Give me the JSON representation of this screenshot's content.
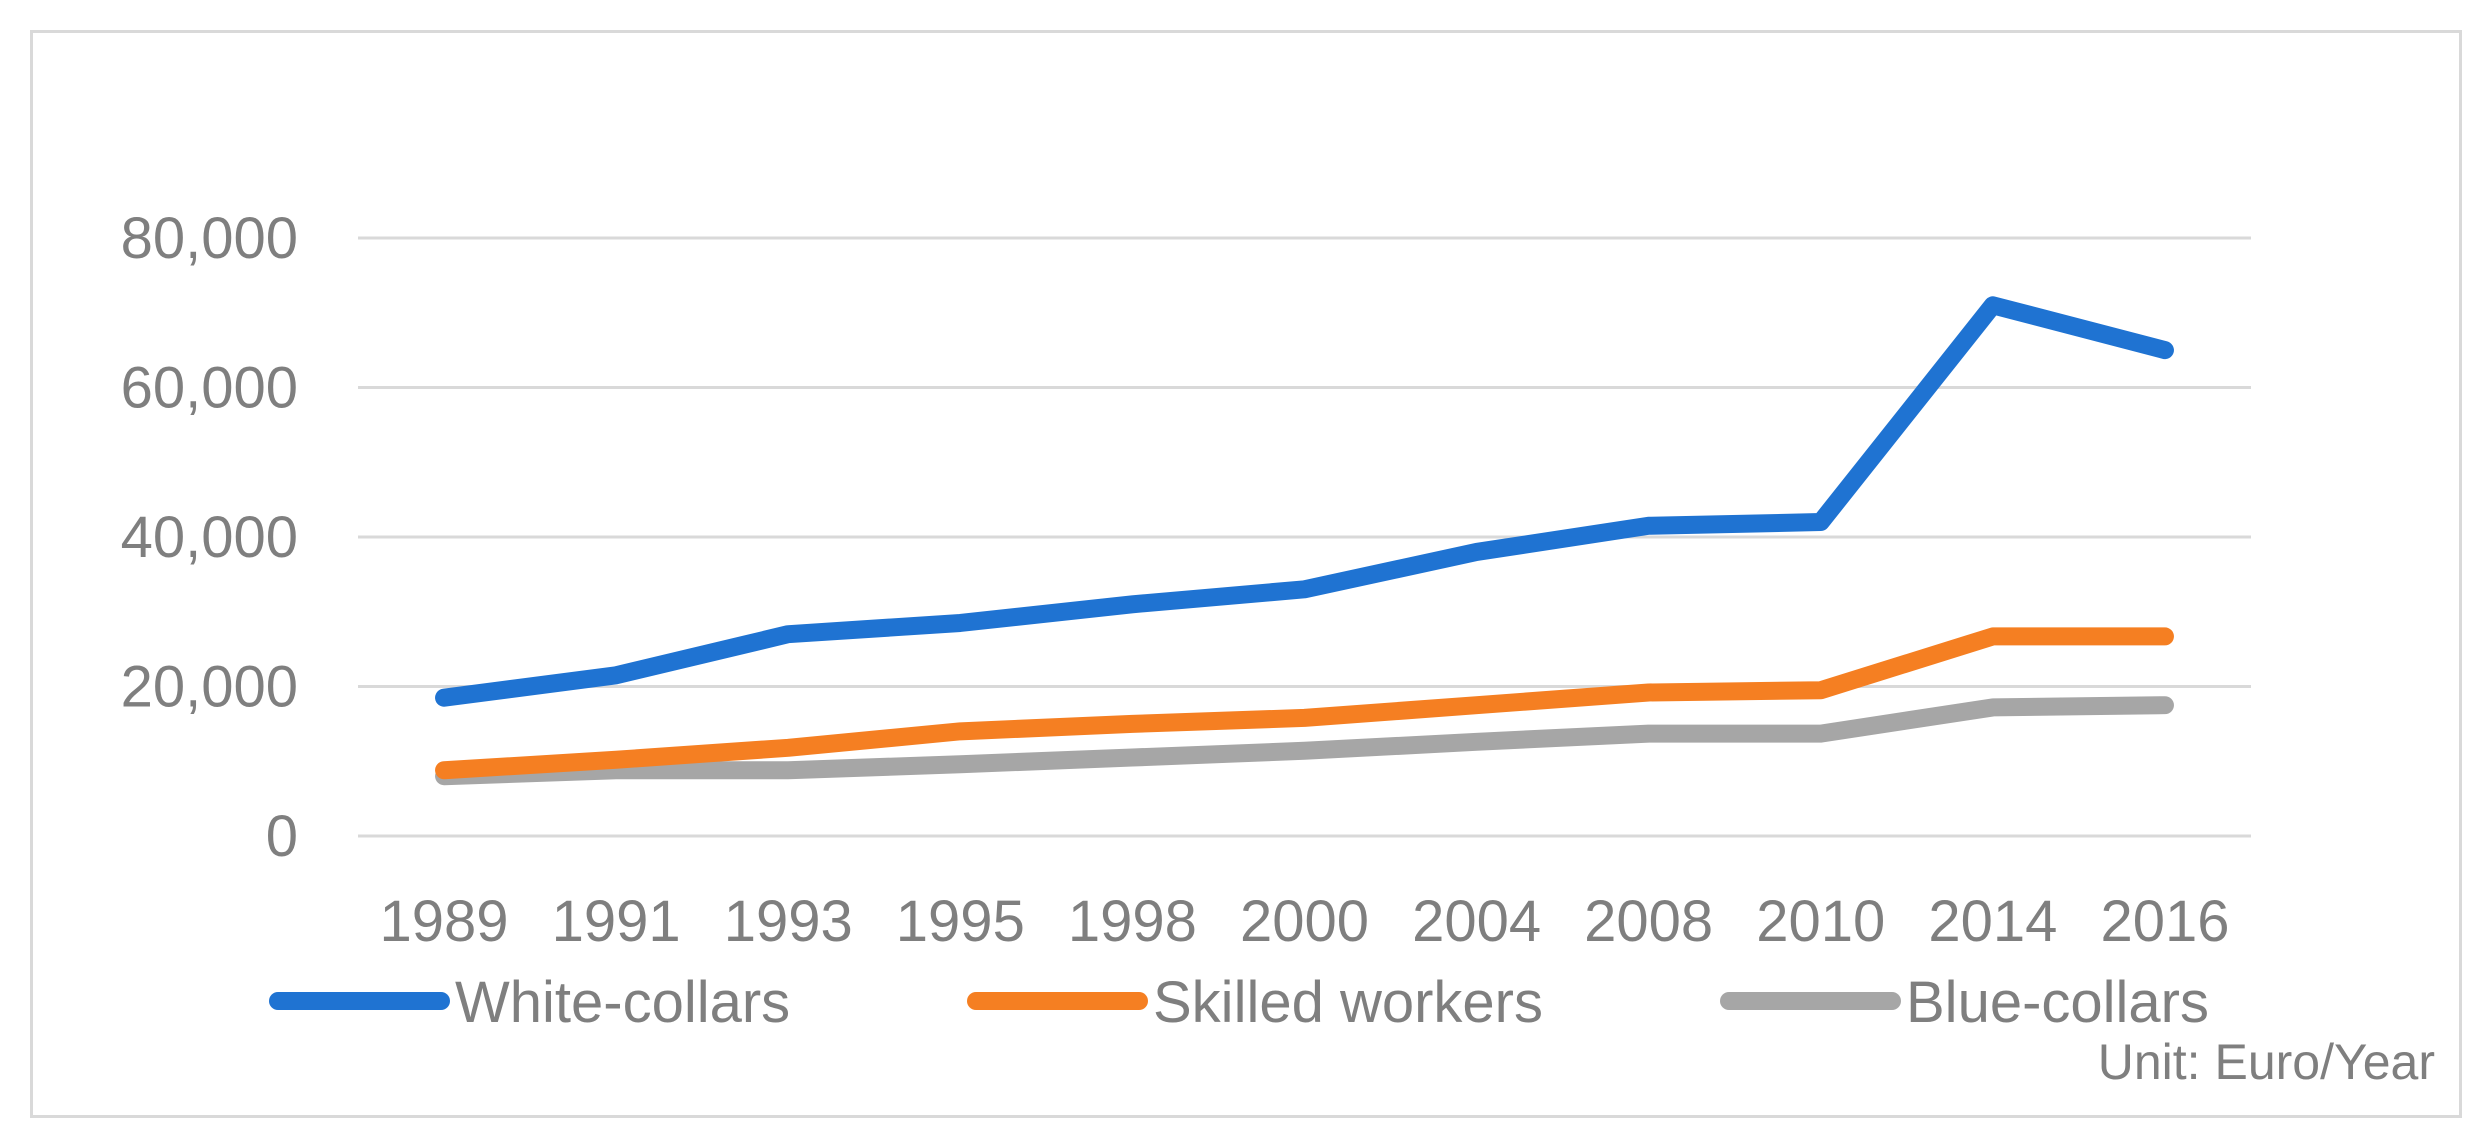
{
  "chart_data": {
    "type": "line",
    "categories": [
      "1989",
      "1991",
      "1993",
      "1995",
      "1998",
      "2000",
      "2004",
      "2008",
      "2010",
      "2014",
      "2016"
    ],
    "series": [
      {
        "name": "White-collars",
        "color": "#1f73d2",
        "values": [
          18500,
          21500,
          27000,
          28500,
          31000,
          33000,
          38000,
          41500,
          42000,
          71000,
          65000
        ]
      },
      {
        "name": "Skilled workers",
        "color": "#f57f22",
        "values": [
          8800,
          10200,
          11800,
          14000,
          15000,
          15800,
          17500,
          19200,
          19500,
          26700,
          26700
        ]
      },
      {
        "name": "Blue-collars",
        "color": "#a6a6a6",
        "values": [
          8000,
          8800,
          8800,
          9600,
          10500,
          11400,
          12600,
          13700,
          13700,
          17200,
          17500
        ]
      }
    ],
    "y_ticks": [
      "0",
      "20,000",
      "40,000",
      "60,000",
      "80,000"
    ],
    "ylim": [
      0,
      80000
    ],
    "grid": true,
    "legend_position": "bottom",
    "unit_note": "Unit: Euro/Year"
  }
}
